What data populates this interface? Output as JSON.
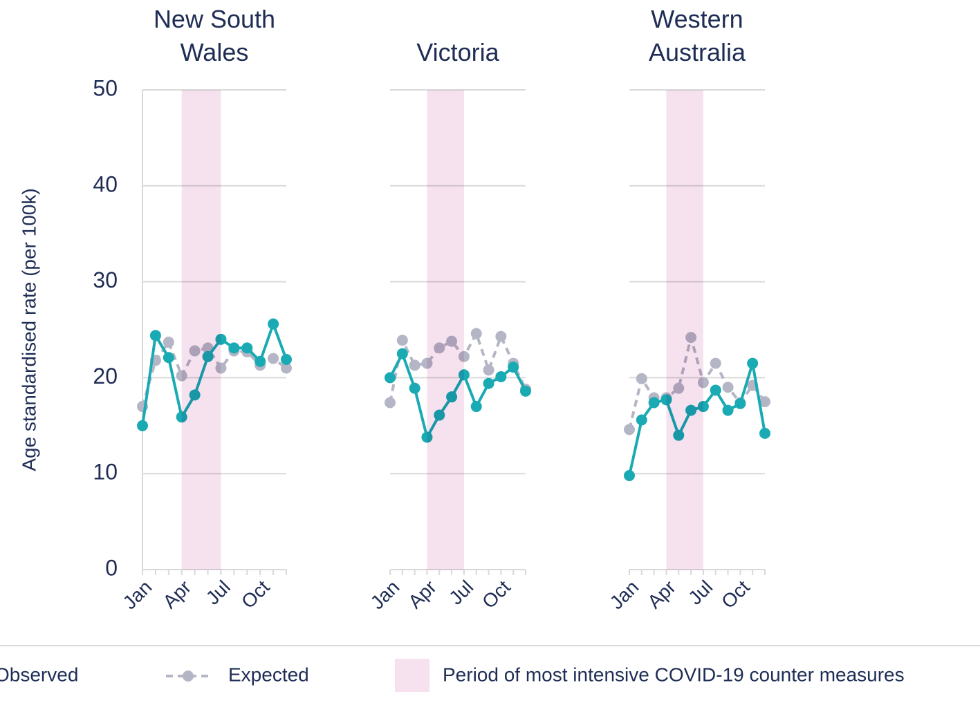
{
  "y_label": "Age standardised rate (per 100k)",
  "legend": {
    "shade": "Period of most intensive COVID-19 counter measures"
  },
  "chart_data": [
    {
      "type": "line",
      "title": "New South Wales",
      "categories": [
        "Jan",
        null,
        null,
        "Apr",
        null,
        null,
        "Jul",
        null,
        null,
        "Oct",
        null,
        null
      ],
      "ylim": [
        0,
        50
      ],
      "yticks": [
        0,
        10,
        20,
        30,
        40,
        50
      ],
      "grid": true,
      "shaded_period": [
        "Apr",
        "Jul"
      ],
      "shade_color": "#f5e2ee",
      "series": [
        {
          "name": "Expected",
          "color": "#b4b6c6",
          "dashed": true,
          "values": [
            17.0,
            21.8,
            23.7,
            20.2,
            22.8,
            23.1,
            21.0,
            22.8,
            22.7,
            21.3,
            22.0,
            21.0
          ]
        },
        {
          "name": "Observed",
          "color": "#19aab3",
          "dashed": false,
          "values": [
            15.0,
            24.4,
            22.1,
            15.9,
            18.2,
            22.2,
            24.0,
            23.1,
            23.1,
            21.7,
            25.6,
            21.9
          ]
        }
      ]
    },
    {
      "type": "line",
      "title": "Victoria",
      "categories": [
        "Jan",
        null,
        null,
        "Apr",
        null,
        null,
        "Jul",
        null,
        null,
        "Oct",
        null,
        null
      ],
      "ylim": [
        0,
        50
      ],
      "yticks": [
        0,
        10,
        20,
        30,
        40,
        50
      ],
      "grid": true,
      "shaded_period": [
        "Apr",
        "Jul"
      ],
      "shade_color": "#f5e2ee",
      "series": [
        {
          "name": "Expected",
          "color": "#b4b6c6",
          "dashed": true,
          "values": [
            17.4,
            23.9,
            21.3,
            21.5,
            23.1,
            23.8,
            22.2,
            24.6,
            20.8,
            24.3,
            21.5,
            18.8
          ]
        },
        {
          "name": "Observed",
          "color": "#19aab3",
          "dashed": false,
          "values": [
            20.0,
            22.5,
            18.9,
            13.8,
            16.1,
            18.0,
            20.3,
            17.0,
            19.4,
            20.1,
            21.1,
            18.6
          ]
        }
      ]
    },
    {
      "type": "line",
      "title": "Western Australia",
      "categories": [
        "Jan",
        null,
        null,
        "Apr",
        null,
        null,
        "Jul",
        null,
        null,
        "Oct",
        null,
        null
      ],
      "ylim": [
        0,
        50
      ],
      "yticks": [
        0,
        10,
        20,
        30,
        40,
        50
      ],
      "grid": true,
      "shaded_period": [
        "Apr",
        "Jul"
      ],
      "shade_color": "#f5e2ee",
      "series": [
        {
          "name": "Expected",
          "color": "#b4b6c6",
          "dashed": true,
          "values": [
            14.6,
            19.9,
            17.9,
            17.9,
            18.9,
            24.2,
            19.5,
            21.5,
            19.0,
            17.4,
            19.2,
            17.5
          ]
        },
        {
          "name": "Observed",
          "color": "#19aab3",
          "dashed": false,
          "values": [
            9.8,
            15.6,
            17.4,
            17.7,
            14.0,
            16.6,
            17.0,
            18.7,
            16.6,
            17.3,
            21.5,
            14.2
          ]
        }
      ]
    }
  ]
}
